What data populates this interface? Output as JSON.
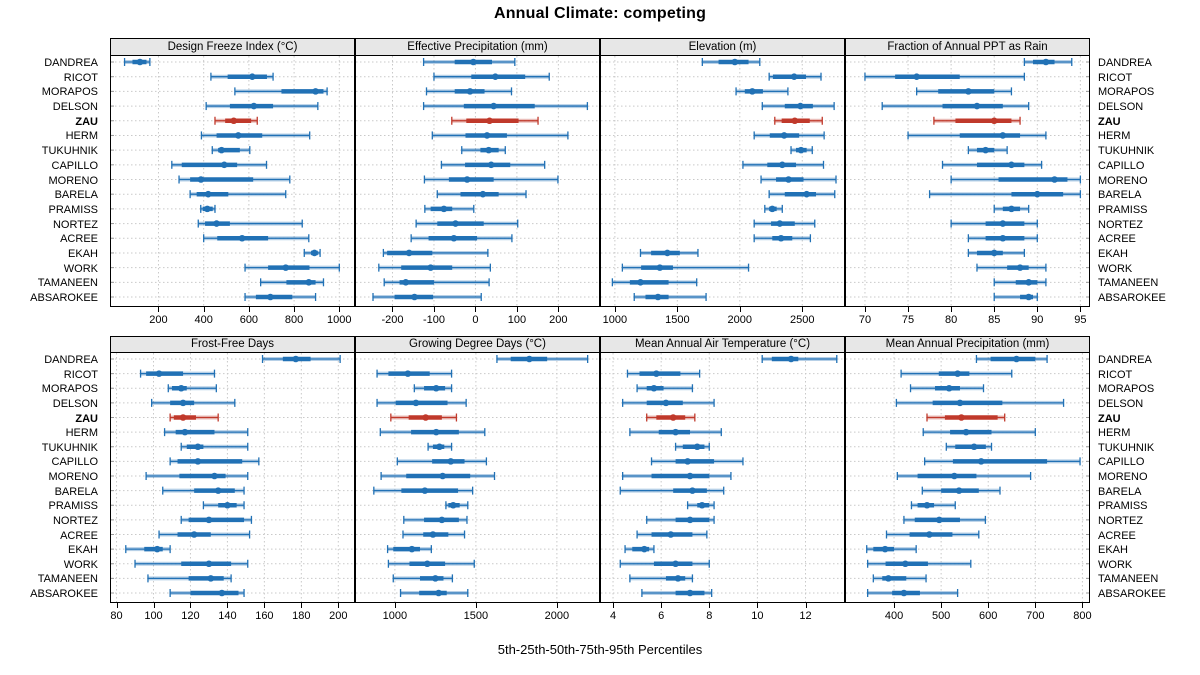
{
  "title": "Annual Climate: competing",
  "caption": "5th-25th-50th-75th-95th Percentiles",
  "highlight_site": "ZAU",
  "colors": {
    "series": "#2171B5",
    "highlight": "#C0392B",
    "strip_bg": "#E7E7E7",
    "grid": "#C9C9C9",
    "border": "#000000"
  },
  "sites": [
    "DANDREA",
    "RICOT",
    "MORAPOS",
    "DELSON",
    "ZAU",
    "HERM",
    "TUKUHNIK",
    "CAPILLO",
    "MORENO",
    "BARELA",
    "PRAMISS",
    "NORTEZ",
    "ACREE",
    "EKAH",
    "WORK",
    "TAMANEEN",
    "ABSAROKEE"
  ],
  "chart_data": {
    "type": "dotplot-percentiles",
    "percentiles": [
      5,
      25,
      50,
      75,
      95
    ],
    "legend_note": "dot = median, thick bar = 25th-75th, thin line with caps = 5th-95th",
    "panels": [
      {
        "title": "Design Freeze Index (°C)",
        "grid": "top",
        "xlim": [
          -10,
          1065
        ],
        "ticks": [
          200,
          400,
          600,
          800,
          1000
        ],
        "series": {
          "DANDREA": [
            50,
            85,
            118,
            147,
            162
          ],
          "RICOT": [
            432,
            506,
            615,
            680,
            707
          ],
          "MORAPOS": [
            538,
            744,
            895,
            930,
            946
          ],
          "DELSON": [
            411,
            516,
            622,
            707,
            905
          ],
          "ZAU": [
            450,
            495,
            533,
            610,
            637
          ],
          "HERM": [
            390,
            457,
            553,
            659,
            869
          ],
          "TUKUHNIK": [
            438,
            464,
            479,
            560,
            604
          ],
          "CAPILLO": [
            259,
            303,
            491,
            548,
            678
          ],
          "MORENO": [
            291,
            340,
            388,
            619,
            781
          ],
          "BARELA": [
            340,
            369,
            420,
            509,
            763
          ],
          "PRAMISS": [
            387,
            396,
            416,
            440,
            450
          ],
          "NORTEZ": [
            376,
            406,
            457,
            516,
            836
          ],
          "ACREE": [
            400,
            460,
            570,
            685,
            865
          ],
          "EKAH": [
            845,
            875,
            890,
            905,
            915
          ],
          "WORK": [
            583,
            685,
            763,
            868,
            1000
          ],
          "TAMANEEN": [
            652,
            766,
            865,
            895,
            930
          ],
          "ABSAROKEE": [
            583,
            631,
            695,
            792,
            895
          ]
        }
      },
      {
        "title": "Effective Precipitation (mm)",
        "grid": "top",
        "xlim": [
          -288,
          298
        ],
        "ticks": [
          -200,
          -100,
          0,
          100,
          200
        ],
        "series": {
          "DANDREA": [
            -125,
            -50,
            -5,
            40,
            95
          ],
          "RICOT": [
            -100,
            -10,
            48,
            120,
            178
          ],
          "MORAPOS": [
            -118,
            -50,
            -13,
            22,
            87
          ],
          "DELSON": [
            -125,
            -28,
            44,
            143,
            270
          ],
          "ZAU": [
            -57,
            -22,
            34,
            104,
            151
          ],
          "HERM": [
            -104,
            -24,
            28,
            76,
            223
          ],
          "TUKUHNIK": [
            -33,
            12,
            32,
            56,
            72
          ],
          "CAPILLO": [
            -82,
            -25,
            38,
            84,
            167
          ],
          "MORENO": [
            -123,
            -64,
            -20,
            44,
            199
          ],
          "BARELA": [
            -92,
            -36,
            18,
            56,
            122
          ],
          "PRAMISS": [
            -122,
            -108,
            -76,
            -56,
            -4
          ],
          "NORTEZ": [
            -143,
            -92,
            -48,
            20,
            102
          ],
          "ACREE": [
            -155,
            -113,
            -52,
            4,
            88
          ],
          "EKAH": [
            -222,
            -213,
            -160,
            -104,
            30
          ],
          "WORK": [
            -233,
            -179,
            -108,
            -56,
            36
          ],
          "TAMANEEN": [
            -220,
            -183,
            -168,
            -100,
            33
          ],
          "ABSAROKEE": [
            -247,
            -195,
            -147,
            -102,
            14
          ]
        }
      },
      {
        "title": "Elevation (m)",
        "grid": "top",
        "xlim": [
          889,
          2834
        ],
        "ticks": [
          1000,
          1500,
          2000,
          2500
        ],
        "series": {
          "DANDREA": [
            1700,
            1830,
            1960,
            2070,
            2160
          ],
          "RICOT": [
            2235,
            2265,
            2435,
            2530,
            2650
          ],
          "MORAPOS": [
            1970,
            2040,
            2100,
            2185,
            2385
          ],
          "DELSON": [
            2180,
            2360,
            2485,
            2585,
            2755
          ],
          "ZAU": [
            2280,
            2335,
            2440,
            2560,
            2660
          ],
          "HERM": [
            2115,
            2240,
            2355,
            2475,
            2675
          ],
          "TUKUHNIK": [
            2410,
            2450,
            2490,
            2535,
            2580
          ],
          "CAPILLO": [
            2025,
            2220,
            2340,
            2450,
            2670
          ],
          "MORENO": [
            2170,
            2290,
            2390,
            2510,
            2770
          ],
          "BARELA": [
            2235,
            2360,
            2535,
            2610,
            2760
          ],
          "PRAMISS": [
            2200,
            2235,
            2260,
            2295,
            2340
          ],
          "NORTEZ": [
            2115,
            2250,
            2320,
            2440,
            2600
          ],
          "ACREE": [
            2115,
            2260,
            2330,
            2420,
            2565
          ],
          "EKAH": [
            1205,
            1290,
            1420,
            1520,
            1665
          ],
          "WORK": [
            1060,
            1210,
            1360,
            1465,
            2070
          ],
          "TAMANEEN": [
            980,
            1120,
            1205,
            1430,
            1655
          ],
          "ABSAROKEE": [
            1155,
            1245,
            1345,
            1430,
            1730
          ]
        }
      },
      {
        "title": "Fraction of Annual PPT as Rain",
        "grid": "top",
        "xlim": [
          67.8,
          96
        ],
        "ticks": [
          70,
          75,
          80,
          85,
          90,
          95
        ],
        "series": {
          "DANDREA": [
            88.5,
            89.5,
            91,
            92,
            94
          ],
          "RICOT": [
            70,
            73.5,
            76,
            81,
            88.5
          ],
          "MORAPOS": [
            76,
            78.5,
            82,
            85,
            87
          ],
          "DELSON": [
            72,
            79,
            83,
            86,
            89
          ],
          "ZAU": [
            78,
            80.5,
            85,
            87,
            88
          ],
          "HERM": [
            75,
            81,
            86,
            88,
            91
          ],
          "TUKUHNIK": [
            82,
            83,
            84,
            85,
            86.5
          ],
          "CAPILLO": [
            79,
            83,
            87,
            88.5,
            90.5
          ],
          "MORENO": [
            80,
            85.5,
            92,
            93.5,
            95
          ],
          "BARELA": [
            77.5,
            87,
            90,
            93,
            95
          ],
          "PRAMISS": [
            85,
            86,
            87,
            88,
            89
          ],
          "NORTEZ": [
            80,
            84,
            86,
            88.5,
            90
          ],
          "ACREE": [
            82,
            84,
            86,
            88.5,
            90
          ],
          "EKAH": [
            82,
            83,
            85,
            86,
            88.5
          ],
          "WORK": [
            83,
            86.5,
            88,
            89,
            91
          ],
          "TAMANEEN": [
            85,
            87.5,
            89,
            90,
            91
          ],
          "ABSAROKEE": [
            85,
            88,
            89,
            89.5,
            90
          ]
        }
      },
      {
        "title": "Frost-Free Days",
        "grid": "bottom",
        "xlim": [
          77,
          208.5
        ],
        "ticks": [
          80,
          100,
          120,
          140,
          160,
          180,
          200
        ],
        "series": {
          "DANDREA": [
            159,
            170,
            177,
            185,
            201
          ],
          "RICOT": [
            93,
            96,
            103,
            116,
            133
          ],
          "MORAPOS": [
            108,
            110,
            115,
            118,
            134
          ],
          "DELSON": [
            99,
            109,
            116,
            122,
            144
          ],
          "ZAU": [
            109,
            111,
            116,
            123,
            135
          ],
          "HERM": [
            106,
            112,
            117,
            133,
            151
          ],
          "TUKUHNIK": [
            115,
            118,
            124,
            127,
            151
          ],
          "CAPILLO": [
            109,
            113,
            124,
            148,
            157
          ],
          "MORENO": [
            96,
            114,
            133,
            139,
            151
          ],
          "BARELA": [
            105,
            122,
            135,
            144,
            149
          ],
          "PRAMISS": [
            127,
            135,
            140,
            145,
            149
          ],
          "NORTEZ": [
            115,
            119,
            130,
            149,
            153
          ],
          "ACREE": [
            103,
            113,
            122,
            131,
            152
          ],
          "EKAH": [
            85,
            95,
            102,
            105,
            109
          ],
          "WORK": [
            90,
            115,
            130,
            142,
            151
          ],
          "TAMANEEN": [
            97,
            119,
            131,
            138,
            142
          ],
          "ABSAROKEE": [
            109,
            120,
            137,
            146,
            149
          ]
        }
      },
      {
        "title": "Growing Degree Days (°C)",
        "grid": "bottom",
        "xlim": [
          760,
          2260
        ],
        "ticks": [
          1000,
          1500,
          2000
        ],
        "series": {
          "DANDREA": [
            1630,
            1715,
            1830,
            1940,
            2190
          ],
          "RICOT": [
            890,
            960,
            1080,
            1215,
            1350
          ],
          "MORAPOS": [
            1120,
            1180,
            1255,
            1310,
            1350
          ],
          "DELSON": [
            890,
            1005,
            1130,
            1325,
            1440
          ],
          "ZAU": [
            975,
            1085,
            1190,
            1290,
            1380
          ],
          "HERM": [
            910,
            1100,
            1255,
            1395,
            1555
          ],
          "TUKUHNIK": [
            1205,
            1235,
            1275,
            1305,
            1350
          ],
          "CAPILLO": [
            1015,
            1230,
            1345,
            1430,
            1565
          ],
          "MORENO": [
            915,
            1070,
            1295,
            1465,
            1615
          ],
          "BARELA": [
            870,
            1040,
            1185,
            1390,
            1480
          ],
          "PRAMISS": [
            1315,
            1330,
            1360,
            1400,
            1450
          ],
          "NORTEZ": [
            1055,
            1180,
            1290,
            1395,
            1445
          ],
          "ACREE": [
            1050,
            1175,
            1235,
            1330,
            1430
          ],
          "EKAH": [
            955,
            990,
            1105,
            1155,
            1225
          ],
          "WORK": [
            960,
            1090,
            1200,
            1310,
            1490
          ],
          "TAMANEEN": [
            990,
            1155,
            1250,
            1300,
            1355
          ],
          "ABSAROKEE": [
            1035,
            1150,
            1270,
            1320,
            1450
          ]
        }
      },
      {
        "title": "Mean Annual Air Temperature (°C)",
        "grid": "bottom",
        "xlim": [
          3.5,
          13.6
        ],
        "ticks": [
          4,
          6,
          8,
          10,
          12
        ],
        "series": {
          "DANDREA": [
            10.2,
            10.6,
            11.4,
            11.7,
            13.3
          ],
          "RICOT": [
            4.6,
            5.1,
            5.8,
            6.8,
            7.6
          ],
          "MORAPOS": [
            5.0,
            5.4,
            5.7,
            6.1,
            7.3
          ],
          "DELSON": [
            4.4,
            5.4,
            6.2,
            6.9,
            8.2
          ],
          "ZAU": [
            5.4,
            5.8,
            6.5,
            7.0,
            7.4
          ],
          "HERM": [
            4.7,
            5.9,
            6.6,
            7.2,
            8.5
          ],
          "TUKUHNIK": [
            6.6,
            6.9,
            7.5,
            7.8,
            8.0
          ],
          "CAPILLO": [
            5.6,
            6.6,
            7.1,
            8.2,
            9.4
          ],
          "MORENO": [
            4.4,
            5.6,
            7.2,
            8.0,
            8.9
          ],
          "BARELA": [
            4.3,
            6.5,
            7.3,
            7.9,
            8.6
          ],
          "PRAMISS": [
            7.1,
            7.5,
            7.7,
            8.0,
            8.2
          ],
          "NORTEZ": [
            5.4,
            6.6,
            7.2,
            8.0,
            8.2
          ],
          "ACREE": [
            5.0,
            5.6,
            6.4,
            7.3,
            7.9
          ],
          "EKAH": [
            4.5,
            4.8,
            5.3,
            5.5,
            5.7
          ],
          "WORK": [
            4.3,
            5.7,
            6.6,
            7.3,
            8.0
          ],
          "TAMANEEN": [
            4.7,
            6.2,
            6.7,
            7.0,
            7.3
          ],
          "ABSAROKEE": [
            5.2,
            6.6,
            7.2,
            7.8,
            8.1
          ]
        }
      },
      {
        "title": "Mean Annual Precipitation (mm)",
        "grid": "bottom",
        "xlim": [
          298,
          814
        ],
        "ticks": [
          400,
          500,
          600,
          700,
          800
        ],
        "series": {
          "DANDREA": [
            575,
            605,
            660,
            700,
            725
          ],
          "RICOT": [
            415,
            495,
            535,
            560,
            650
          ],
          "MORAPOS": [
            435,
            487,
            517,
            540,
            590
          ],
          "DELSON": [
            405,
            482,
            540,
            630,
            760
          ],
          "ZAU": [
            470,
            508,
            543,
            620,
            635
          ],
          "HERM": [
            462,
            519,
            553,
            607,
            700
          ],
          "TUKUHNIK": [
            511,
            530,
            570,
            595,
            607
          ],
          "CAPILLO": [
            465,
            525,
            585,
            725,
            795
          ],
          "MORENO": [
            407,
            450,
            528,
            575,
            690
          ],
          "BARELA": [
            460,
            500,
            538,
            580,
            625
          ],
          "PRAMISS": [
            437,
            450,
            470,
            485,
            530
          ],
          "NORTEZ": [
            421,
            444,
            496,
            540,
            594
          ],
          "ACREE": [
            384,
            433,
            475,
            524,
            580
          ],
          "EKAH": [
            342,
            356,
            381,
            400,
            447
          ],
          "WORK": [
            344,
            382,
            424,
            472,
            563
          ],
          "TAMANEEN": [
            356,
            375,
            388,
            426,
            468
          ],
          "ABSAROKEE": [
            344,
            396,
            421,
            455,
            535
          ]
        }
      }
    ]
  }
}
